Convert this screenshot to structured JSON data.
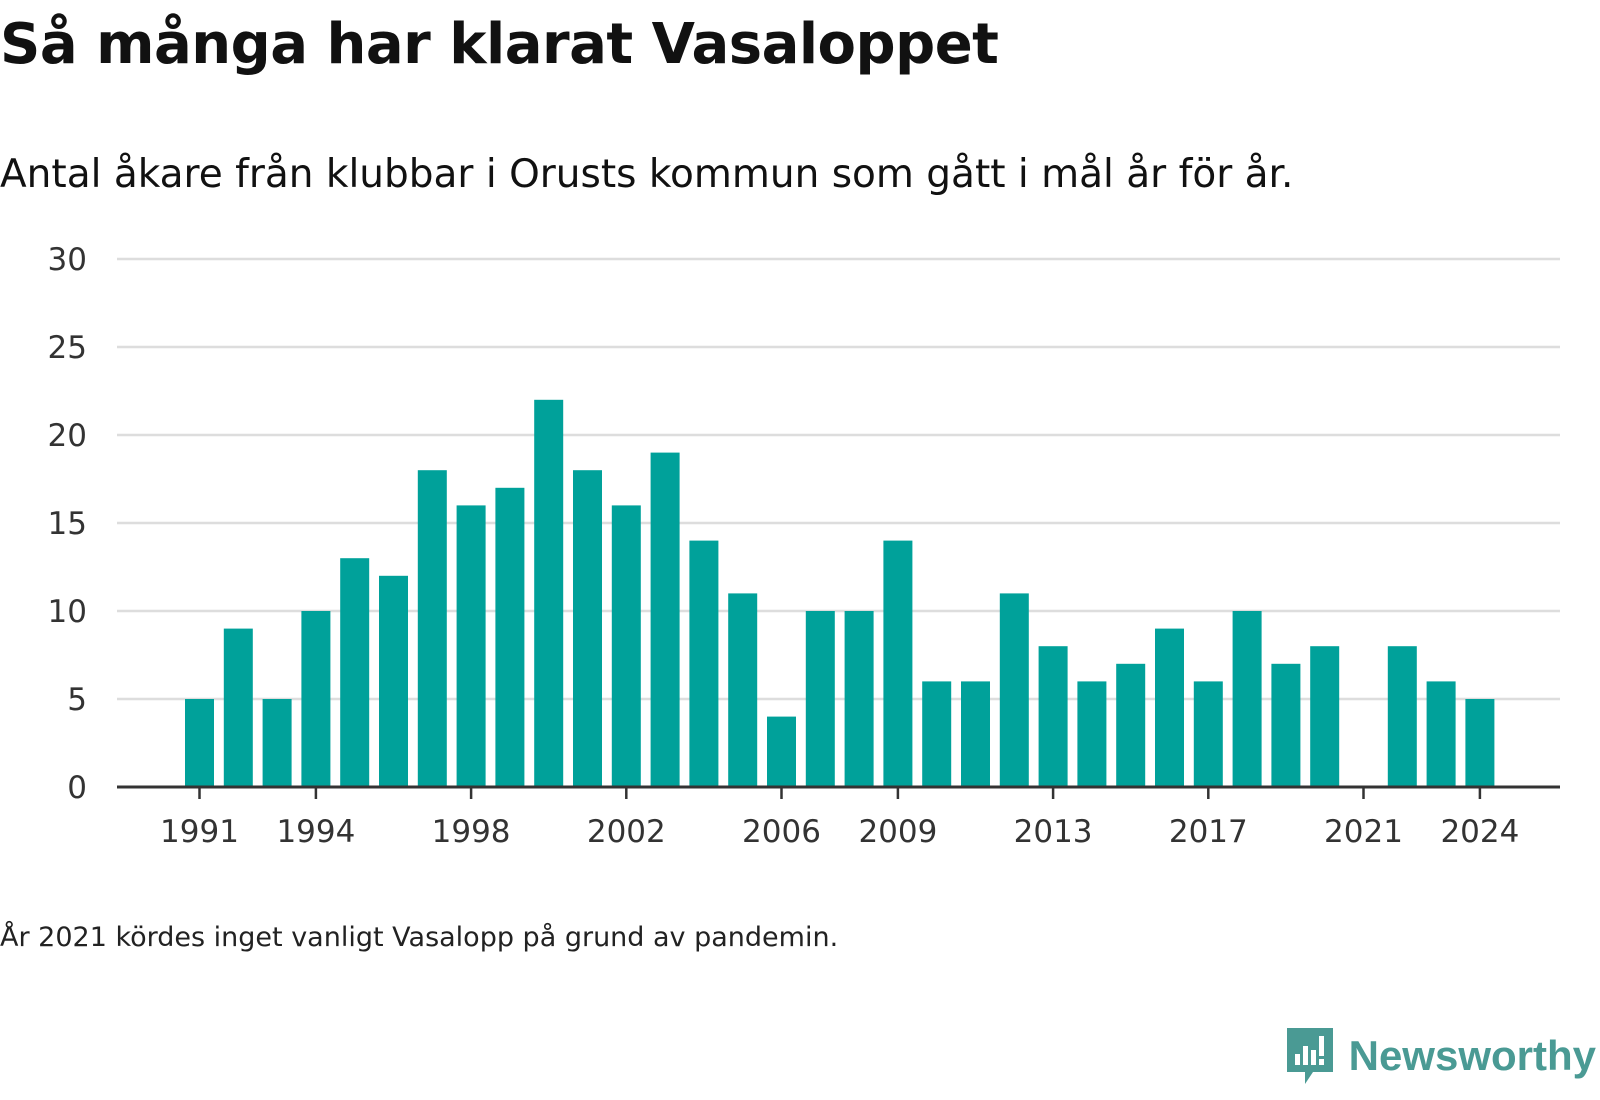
{
  "header": {
    "title": "Så många har klarat Vasaloppet",
    "subtitle": "Antal åkare från klubbar i Orusts kommun som gått i mål år för år."
  },
  "footer": {
    "note": "År 2021 kördes inget vanligt Vasalopp på grund av pandemin.",
    "brand": "Newsworthy"
  },
  "colors": {
    "bar": "#00a19a",
    "grid": "#dddddd",
    "axis": "#333333",
    "brand": "#4a9a94"
  },
  "chart_data": {
    "type": "bar",
    "x": [
      1991,
      1992,
      1993,
      1994,
      1995,
      1996,
      1997,
      1998,
      1999,
      2000,
      2001,
      2002,
      2003,
      2004,
      2005,
      2006,
      2007,
      2008,
      2009,
      2010,
      2011,
      2012,
      2013,
      2014,
      2015,
      2016,
      2017,
      2018,
      2019,
      2020,
      2021,
      2022,
      2023,
      2024
    ],
    "values": [
      5,
      9,
      5,
      10,
      13,
      12,
      18,
      16,
      17,
      22,
      18,
      16,
      19,
      14,
      11,
      4,
      10,
      10,
      14,
      6,
      6,
      11,
      8,
      6,
      7,
      9,
      6,
      10,
      7,
      8,
      0,
      8,
      6,
      5
    ],
    "x_tick_labels": [
      1991,
      1994,
      1998,
      2002,
      2006,
      2009,
      2013,
      2017,
      2021,
      2024
    ],
    "y_ticks": [
      0,
      5,
      10,
      15,
      20,
      25,
      30
    ],
    "ylim": [
      0,
      30
    ],
    "grid": true,
    "legend": "none"
  }
}
